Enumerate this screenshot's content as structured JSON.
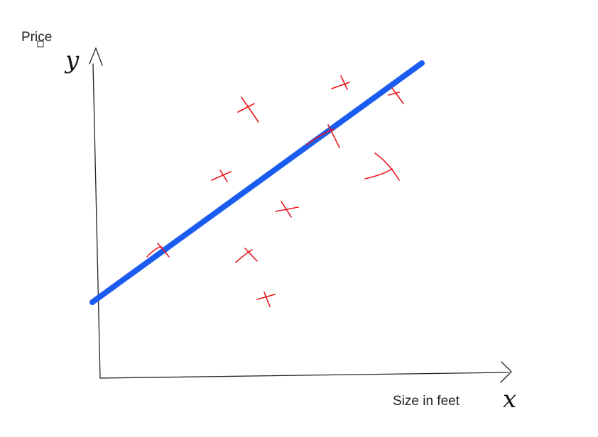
{
  "labels": {
    "y_axis": "Price",
    "x_axis": "Size in feet",
    "y_letter": "y",
    "x_letter": "x"
  }
}
